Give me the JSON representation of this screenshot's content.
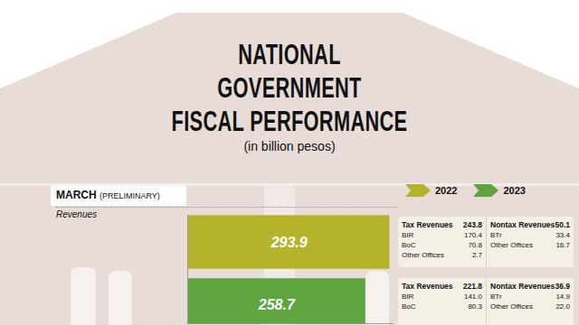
{
  "header": {
    "title": [
      "NATIONAL",
      "GOVERNMENT",
      "FISCAL PERFORMANCE"
    ],
    "subtitle": "(in billion pesos)"
  },
  "chart_data": {
    "type": "bar",
    "orientation": "horizontal",
    "title": "MARCH",
    "subtitle": "(PRELIMINARY)",
    "ylabel": "Revenues",
    "categories": [
      null
    ],
    "series": [
      {
        "name": "2022",
        "color": "#b3b42c",
        "values": [
          293.9
        ]
      },
      {
        "name": "2023",
        "color": "#5ea53f",
        "values": [
          258.7
        ]
      }
    ],
    "xlim": [
      0,
      300
    ],
    "tick_labels": false,
    "data_labels": true,
    "legend": "top right",
    "stacked": false,
    "grid": false
  },
  "breakdown": [
    {
      "tax": {
        "label": "Tax Revenues",
        "total": "243.8",
        "rows": [
          [
            "BIR",
            "170.4"
          ],
          [
            "BoC",
            "70.8"
          ],
          [
            "Other Offices",
            "2.7"
          ]
        ]
      },
      "nontax": {
        "label": "Nontax Revenues",
        "total": "50.1",
        "rows": [
          [
            "BTr",
            "33.4"
          ],
          [
            "Other Offices",
            "16.7"
          ]
        ]
      }
    },
    {
      "tax": {
        "label": "Tax Revenues",
        "total": "221.8",
        "rows": [
          [
            "BIR",
            "141.0"
          ],
          [
            "BoC",
            "80.3"
          ]
        ]
      },
      "nontax": {
        "label": "Nontax Revenues",
        "total": "36.9",
        "rows": [
          [
            "BTr",
            "14.9"
          ],
          [
            "Other Offices",
            "22.0"
          ]
        ]
      }
    }
  ]
}
